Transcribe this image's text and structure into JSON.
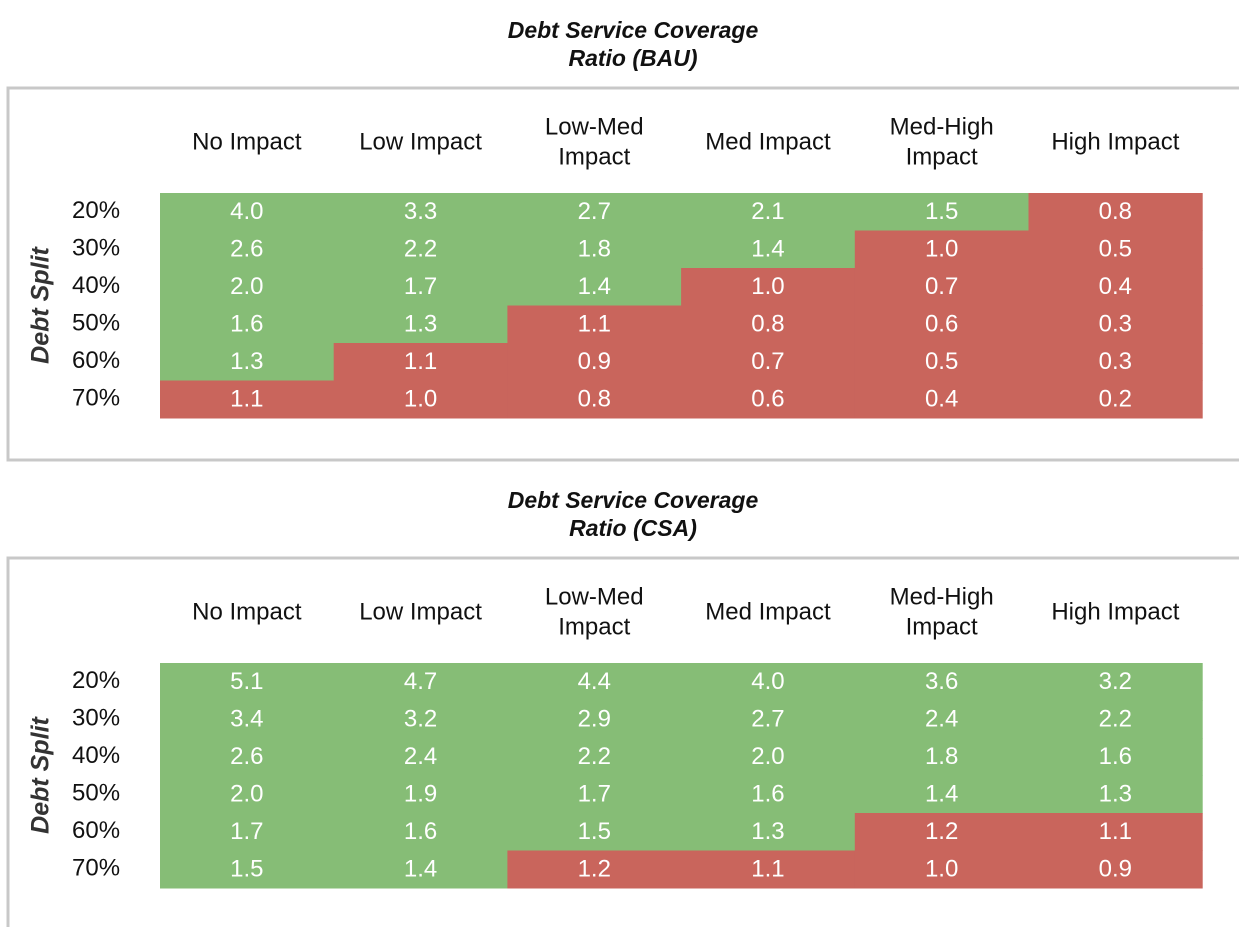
{
  "tables": [
    {
      "title_lines": [
        "Debt Service Coverage",
        "Ratio (BAU)"
      ],
      "row_axis_label": "Debt Split",
      "columns": [
        [
          "No Impact"
        ],
        [
          "Low Impact"
        ],
        [
          "Low-Med",
          "Impact"
        ],
        [
          "Med Impact"
        ],
        [
          "Med-High",
          "Impact"
        ],
        [
          "High Impact"
        ]
      ],
      "rows": [
        "20%",
        "30%",
        "40%",
        "50%",
        "60%",
        "70%"
      ],
      "cells": [
        [
          "4.0",
          "3.3",
          "2.7",
          "2.1",
          "1.5",
          "0.8"
        ],
        [
          "2.6",
          "2.2",
          "1.8",
          "1.4",
          "1.0",
          "0.5"
        ],
        [
          "2.0",
          "1.7",
          "1.4",
          "1.0",
          "0.7",
          "0.4"
        ],
        [
          "1.6",
          "1.3",
          "1.1",
          "0.8",
          "0.6",
          "0.3"
        ],
        [
          "1.3",
          "1.1",
          "0.9",
          "0.7",
          "0.5",
          "0.3"
        ],
        [
          "1.1",
          "1.0",
          "0.8",
          "0.6",
          "0.4",
          "0.2"
        ]
      ],
      "fills": [
        [
          "#86bd76",
          "#86bd76",
          "#86bd76",
          "#86bd76",
          "#86bd76",
          "#c9655c"
        ],
        [
          "#86bd76",
          "#86bd76",
          "#86bd76",
          "#86bd76",
          "#c9655c",
          "#c9655c"
        ],
        [
          "#86bd76",
          "#86bd76",
          "#86bd76",
          "#c9655c",
          "#c9655c",
          "#c9655c"
        ],
        [
          "#86bd76",
          "#86bd76",
          "#c9655c",
          "#c9655c",
          "#c9655c",
          "#c9655c"
        ],
        [
          "#86bd76",
          "#c9655c",
          "#c9655c",
          "#c9655c",
          "#c9655c",
          "#c9655c"
        ],
        [
          "#c9655c",
          "#c9655c",
          "#c9655c",
          "#c9655c",
          "#c9655c",
          "#c9655c"
        ]
      ]
    },
    {
      "title_lines": [
        "Debt Service Coverage",
        "Ratio (CSA)"
      ],
      "row_axis_label": "Debt Split",
      "columns": [
        [
          "No Impact"
        ],
        [
          "Low Impact"
        ],
        [
          "Low-Med",
          "Impact"
        ],
        [
          "Med Impact"
        ],
        [
          "Med-High",
          "Impact"
        ],
        [
          "High Impact"
        ]
      ],
      "rows": [
        "20%",
        "30%",
        "40%",
        "50%",
        "60%",
        "70%"
      ],
      "cells": [
        [
          "5.1",
          "4.7",
          "4.4",
          "4.0",
          "3.6",
          "3.2"
        ],
        [
          "3.4",
          "3.2",
          "2.9",
          "2.7",
          "2.4",
          "2.2"
        ],
        [
          "2.6",
          "2.4",
          "2.2",
          "2.0",
          "1.8",
          "1.6"
        ],
        [
          "2.0",
          "1.9",
          "1.7",
          "1.6",
          "1.4",
          "1.3"
        ],
        [
          "1.7",
          "1.6",
          "1.5",
          "1.3",
          "1.2",
          "1.1"
        ],
        [
          "1.5",
          "1.4",
          "1.2",
          "1.1",
          "1.0",
          "0.9"
        ]
      ],
      "fills": [
        [
          "#86bd76",
          "#86bd76",
          "#86bd76",
          "#86bd76",
          "#86bd76",
          "#86bd76"
        ],
        [
          "#86bd76",
          "#86bd76",
          "#86bd76",
          "#86bd76",
          "#86bd76",
          "#86bd76"
        ],
        [
          "#86bd76",
          "#86bd76",
          "#86bd76",
          "#86bd76",
          "#86bd76",
          "#86bd76"
        ],
        [
          "#86bd76",
          "#86bd76",
          "#86bd76",
          "#86bd76",
          "#86bd76",
          "#86bd76"
        ],
        [
          "#86bd76",
          "#86bd76",
          "#86bd76",
          "#86bd76",
          "#c9655c",
          "#c9655c"
        ],
        [
          "#86bd76",
          "#86bd76",
          "#c9655c",
          "#c9655c",
          "#c9655c",
          "#c9655c"
        ]
      ]
    }
  ]
}
